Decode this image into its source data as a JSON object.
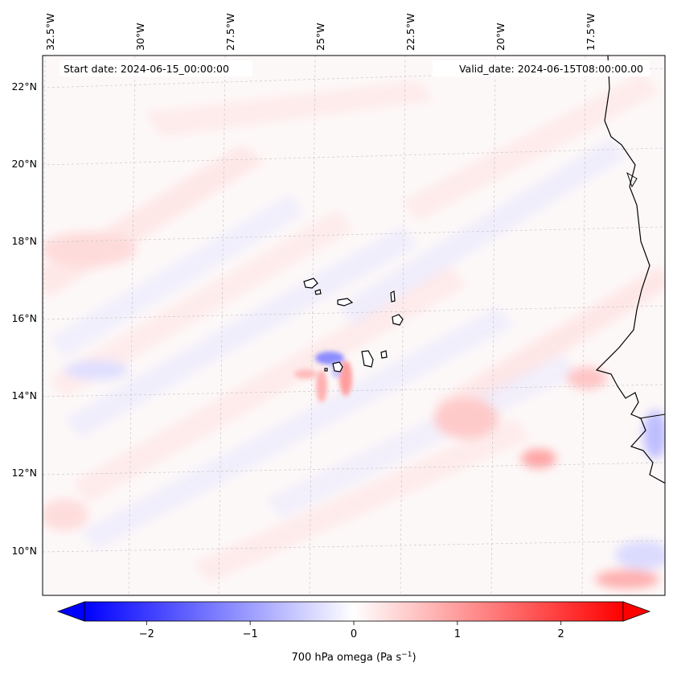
{
  "map": {
    "start_label": "Start date: 2024-06-15_00:00:00",
    "valid_label": "Valid_date: 2024-06-15T08:00:00.00",
    "lon_labels": [
      "32.5°W",
      "30°W",
      "27.5°W",
      "25°W",
      "22.5°W",
      "20°W",
      "17.5°W"
    ],
    "lat_labels": [
      "22°N",
      "20°N",
      "18°N",
      "16°N",
      "14°N",
      "12°N",
      "10°N"
    ],
    "field_variable": "700 hPa omega",
    "colors": {
      "negative": "#0000ff",
      "zero": "#ffffff",
      "positive": "#ff0000"
    }
  },
  "colorbar": {
    "ticks": [
      "−2",
      "−1",
      "0",
      "1",
      "2"
    ],
    "tick_values": [
      -2,
      -1,
      0,
      1,
      2
    ],
    "range": [
      -2.6,
      2.6
    ],
    "extend": "both",
    "label_prefix": "700 hPa omega (Pa s",
    "label_exp": "−1",
    "label_suffix": ")"
  }
}
